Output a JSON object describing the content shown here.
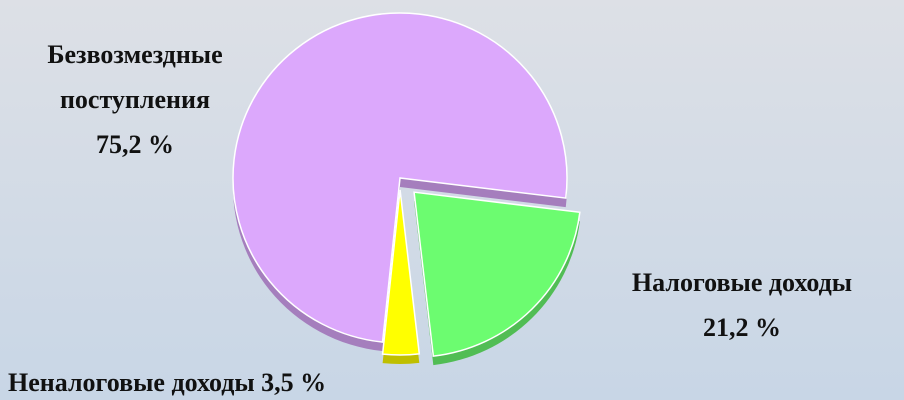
{
  "chart_data": {
    "type": "pie",
    "categories": [
      "Безвозмездные поступления",
      "Налоговые доходы",
      "Неналоговые доходы"
    ],
    "values": [
      75.2,
      21.2,
      3.5
    ],
    "value_labels": [
      "75,2 %",
      "21,2 %",
      "3,5 %"
    ],
    "colors": [
      "#dca8fc",
      "#6cfc70",
      "#ffff00"
    ]
  }
}
